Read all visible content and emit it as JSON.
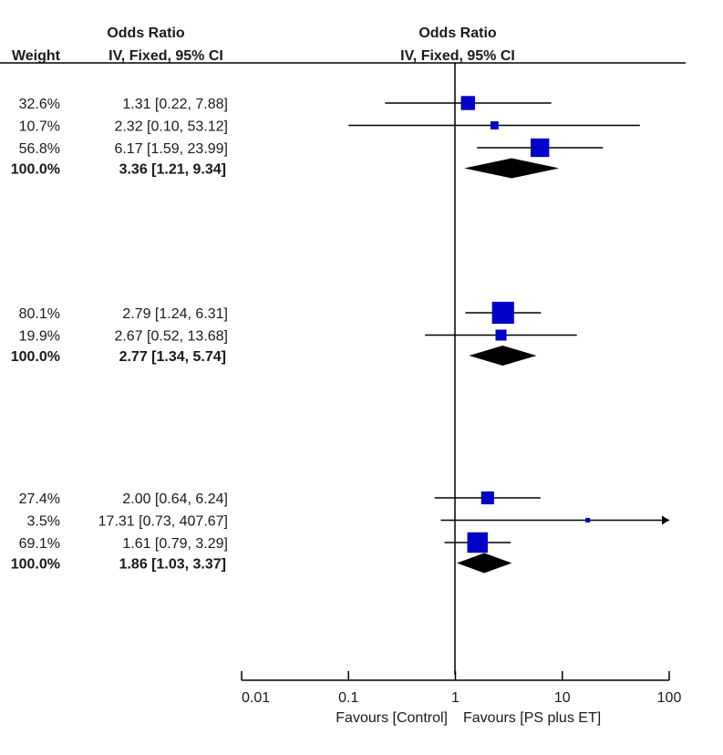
{
  "chart_data": {
    "type": "forest",
    "columns": {
      "weight_header": "Weight",
      "or_header_line1": "Odds Ratio",
      "or_header_line2": "IV, Fixed, 95% CI",
      "plot_header_line1": "Odds Ratio",
      "plot_header_line2": "IV, Fixed, 95% CI"
    },
    "x_axis": {
      "scale": "log",
      "xlim": [
        0.01,
        100
      ],
      "ticks": [
        0.01,
        0.1,
        1,
        10,
        100
      ],
      "tick_labels": [
        "0.01",
        "0.1",
        "1",
        "10",
        "100"
      ],
      "null_value": 1,
      "favours_left": "Favours [Control]",
      "favours_right": "Favours [PS plus ET]"
    },
    "groups": [
      {
        "studies": [
          {
            "weight": "32.6%",
            "ci_text": "1.31 [0.22, 7.88]",
            "or": 1.31,
            "lo": 0.22,
            "hi": 7.88,
            "w": 32.6
          },
          {
            "weight": "10.7%",
            "ci_text": "2.32 [0.10, 53.12]",
            "or": 2.32,
            "lo": 0.1,
            "hi": 53.12,
            "w": 10.7
          },
          {
            "weight": "56.8%",
            "ci_text": "6.17 [1.59, 23.99]",
            "or": 6.17,
            "lo": 1.59,
            "hi": 23.99,
            "w": 56.8
          }
        ],
        "total": {
          "weight": "100.0%",
          "ci_text": "3.36 [1.21, 9.34]",
          "or": 3.36,
          "lo": 1.21,
          "hi": 9.34
        }
      },
      {
        "studies": [
          {
            "weight": "80.1%",
            "ci_text": "2.79 [1.24, 6.31]",
            "or": 2.79,
            "lo": 1.24,
            "hi": 6.31,
            "w": 80.1
          },
          {
            "weight": "19.9%",
            "ci_text": "2.67 [0.52, 13.68]",
            "or": 2.67,
            "lo": 0.52,
            "hi": 13.68,
            "w": 19.9
          }
        ],
        "total": {
          "weight": "100.0%",
          "ci_text": "2.77 [1.34, 5.74]",
          "or": 2.77,
          "lo": 1.34,
          "hi": 5.74
        }
      },
      {
        "studies": [
          {
            "weight": "27.4%",
            "ci_text": "2.00 [0.64, 6.24]",
            "or": 2.0,
            "lo": 0.64,
            "hi": 6.24,
            "w": 27.4
          },
          {
            "weight": "3.5%",
            "ci_text": "17.31 [0.73, 407.67]",
            "or": 17.31,
            "lo": 0.73,
            "hi": 407.67,
            "w": 3.5
          },
          {
            "weight": "69.1%",
            "ci_text": "1.61 [0.79, 3.29]",
            "or": 1.61,
            "lo": 0.79,
            "hi": 3.29,
            "w": 69.1
          }
        ],
        "total": {
          "weight": "100.0%",
          "ci_text": "1.86 [1.03, 3.37]",
          "or": 1.86,
          "lo": 1.03,
          "hi": 3.37
        }
      }
    ],
    "colors": {
      "square": "#0000c8",
      "diamond": "#000000",
      "line": "#000000",
      "text": "#1a1a1a"
    }
  }
}
